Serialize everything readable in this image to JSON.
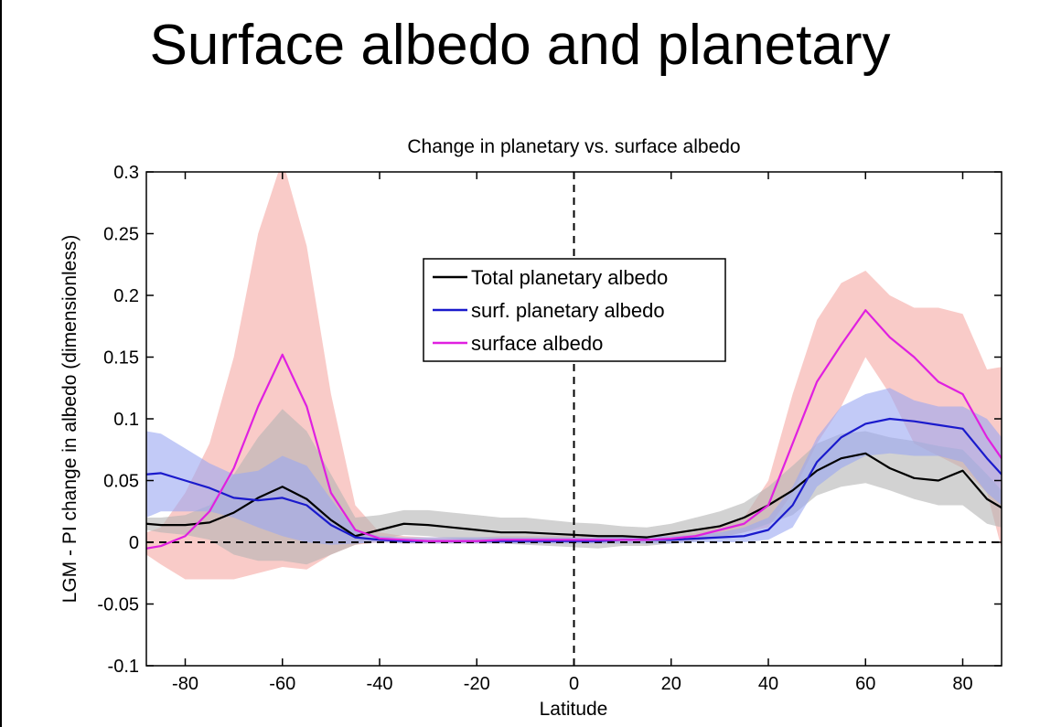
{
  "slide": {
    "title": "Surface albedo and planetary"
  },
  "chart_data": {
    "type": "line",
    "title": "Change in planetary vs. surface albedo",
    "xlabel": "Latitude",
    "ylabel": "LGM - PI change in albedo (dimensionless)",
    "xlim": [
      -88,
      88
    ],
    "ylim": [
      -0.1,
      0.3
    ],
    "xticks": [
      -80,
      -60,
      -40,
      -20,
      0,
      20,
      40,
      60,
      80
    ],
    "xtick_labels": [
      "-80",
      "-60",
      "-40",
      "-20",
      "0",
      "20",
      "40",
      "60",
      "80"
    ],
    "yticks": [
      -0.1,
      -0.05,
      0,
      0.05,
      0.1,
      0.15,
      0.2,
      0.25,
      0.3
    ],
    "ytick_labels": [
      "-0.1",
      "-0.05",
      "0",
      "0.05",
      "0.1",
      "0.15",
      "0.2",
      "0.25",
      "0.3"
    ],
    "grid": false,
    "legend_position": "top-center",
    "reference_lines": [
      {
        "orientation": "horizontal",
        "value": 0,
        "style": "dashed"
      },
      {
        "orientation": "vertical",
        "value": 0,
        "style": "dashed"
      }
    ],
    "x": [
      -88,
      -85,
      -80,
      -75,
      -70,
      -65,
      -60,
      -55,
      -50,
      -45,
      -40,
      -35,
      -30,
      -25,
      -20,
      -15,
      -10,
      -5,
      0,
      5,
      10,
      15,
      20,
      25,
      30,
      35,
      40,
      45,
      50,
      55,
      60,
      65,
      70,
      75,
      80,
      85,
      88
    ],
    "series": [
      {
        "name": "Total planetary albedo",
        "color": "#000000",
        "band_color": "#b4b4b4",
        "values": [
          0.015,
          0.014,
          0.014,
          0.016,
          0.024,
          0.036,
          0.045,
          0.035,
          0.018,
          0.005,
          0.01,
          0.015,
          0.014,
          0.012,
          0.01,
          0.008,
          0.008,
          0.007,
          0.006,
          0.005,
          0.005,
          0.004,
          0.007,
          0.01,
          0.013,
          0.02,
          0.03,
          0.042,
          0.058,
          0.068,
          0.072,
          0.06,
          0.052,
          0.05,
          0.058,
          0.035,
          0.028
        ],
        "band_upper": [
          0.02,
          0.02,
          0.022,
          0.03,
          0.055,
          0.085,
          0.108,
          0.09,
          0.055,
          0.02,
          0.022,
          0.026,
          0.026,
          0.024,
          0.022,
          0.02,
          0.02,
          0.018,
          0.016,
          0.015,
          0.013,
          0.012,
          0.015,
          0.02,
          0.025,
          0.032,
          0.045,
          0.062,
          0.08,
          0.088,
          0.09,
          0.085,
          0.082,
          0.078,
          0.075,
          0.055,
          0.042
        ],
        "band_lower": [
          0.01,
          0.008,
          0.006,
          0.002,
          -0.01,
          -0.015,
          -0.015,
          -0.018,
          -0.01,
          -0.002,
          0.002,
          0.006,
          0.005,
          0.003,
          0.001,
          -0.001,
          -0.002,
          -0.003,
          -0.004,
          -0.005,
          -0.003,
          -0.003,
          -0.001,
          0.001,
          0.004,
          0.008,
          0.015,
          0.022,
          0.038,
          0.045,
          0.048,
          0.042,
          0.035,
          0.03,
          0.03,
          0.015,
          0.012
        ]
      },
      {
        "name": "surf. planetary albedo",
        "color": "#1a1acc",
        "band_color": "#9aa6f2",
        "values": [
          0.055,
          0.056,
          0.05,
          0.044,
          0.036,
          0.034,
          0.036,
          0.03,
          0.014,
          0.004,
          0.002,
          0.001,
          0.001,
          0.001,
          0.001,
          0.001,
          0.001,
          0.001,
          0.001,
          0.001,
          0.002,
          0.002,
          0.002,
          0.003,
          0.004,
          0.005,
          0.01,
          0.03,
          0.065,
          0.085,
          0.096,
          0.1,
          0.098,
          0.095,
          0.092,
          0.068,
          0.055
        ],
        "band_upper": [
          0.09,
          0.088,
          0.076,
          0.064,
          0.055,
          0.058,
          0.07,
          0.062,
          0.035,
          0.01,
          0.005,
          0.004,
          0.004,
          0.004,
          0.004,
          0.004,
          0.004,
          0.004,
          0.004,
          0.004,
          0.005,
          0.005,
          0.005,
          0.006,
          0.008,
          0.012,
          0.02,
          0.045,
          0.085,
          0.11,
          0.12,
          0.125,
          0.115,
          0.11,
          0.11,
          0.1,
          0.085
        ],
        "band_lower": [
          0.02,
          0.025,
          0.025,
          0.025,
          0.02,
          0.012,
          0.005,
          0.0,
          -0.002,
          -0.001,
          0.0,
          -0.001,
          -0.001,
          -0.001,
          -0.001,
          -0.001,
          -0.001,
          -0.001,
          -0.001,
          -0.001,
          -0.001,
          -0.001,
          -0.001,
          0.0,
          0.0,
          0.0,
          0.002,
          0.012,
          0.045,
          0.06,
          0.07,
          0.072,
          0.07,
          0.07,
          0.065,
          0.04,
          0.03
        ]
      },
      {
        "name": "surface  albedo",
        "color": "#e020e0",
        "band_color": "#f5a9a3",
        "values": [
          -0.005,
          -0.003,
          0.005,
          0.025,
          0.06,
          0.11,
          0.152,
          0.11,
          0.04,
          0.01,
          0.003,
          0.002,
          0.001,
          0.001,
          0.001,
          0.002,
          0.002,
          0.002,
          0.002,
          0.002,
          0.002,
          0.002,
          0.003,
          0.005,
          0.01,
          0.015,
          0.03,
          0.08,
          0.13,
          0.16,
          0.188,
          0.166,
          0.15,
          0.13,
          0.12,
          0.085,
          0.068
        ],
        "band_upper": [
          0.008,
          0.012,
          0.04,
          0.08,
          0.15,
          0.25,
          0.31,
          0.24,
          0.12,
          0.03,
          0.008,
          0.005,
          0.004,
          0.004,
          0.004,
          0.005,
          0.005,
          0.005,
          0.005,
          0.005,
          0.005,
          0.005,
          0.006,
          0.008,
          0.014,
          0.02,
          0.05,
          0.12,
          0.18,
          0.21,
          0.22,
          0.2,
          0.19,
          0.19,
          0.185,
          0.14,
          0.142
        ],
        "band_lower": [
          -0.01,
          -0.018,
          -0.03,
          -0.03,
          -0.03,
          -0.025,
          -0.02,
          -0.022,
          -0.01,
          -0.002,
          0.0,
          -0.001,
          -0.001,
          -0.001,
          -0.001,
          -0.001,
          -0.001,
          -0.001,
          -0.001,
          -0.001,
          -0.001,
          -0.001,
          0.0,
          0.001,
          0.004,
          0.008,
          0.012,
          0.04,
          0.08,
          0.11,
          0.15,
          0.12,
          0.08,
          0.07,
          0.06,
          0.04,
          -0.005
        ]
      }
    ]
  }
}
